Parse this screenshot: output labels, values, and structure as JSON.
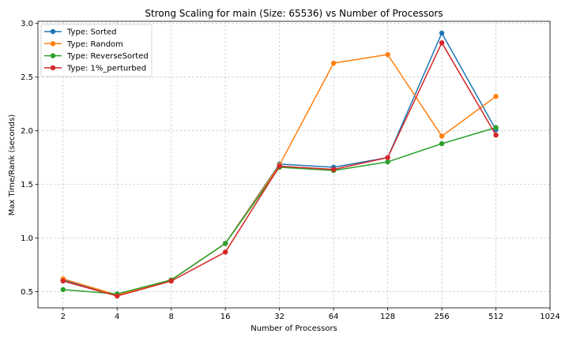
{
  "chart_data": {
    "type": "line",
    "title": "Strong Scaling for main (Size: 65536) vs Number of Processors",
    "xlabel": "Number of Processors",
    "ylabel": "Max Time/Rank (seconds)",
    "x_scale": "log2",
    "x_ticks": [
      2,
      4,
      8,
      16,
      32,
      64,
      128,
      256,
      512,
      1024
    ],
    "xlim": [
      1.45,
      1024
    ],
    "ylim": [
      0.35,
      3.02
    ],
    "y_ticks": [
      "0.5",
      "1.0",
      "1.5",
      "2.0",
      "2.5",
      "3.0"
    ],
    "grid": true,
    "legend_position": "upper-left",
    "x": [
      2,
      4,
      8,
      16,
      32,
      64,
      128,
      256,
      512
    ],
    "series": [
      {
        "name": "Type: Sorted",
        "color": "#1f77b4",
        "values": [
          0.61,
          0.47,
          0.61,
          0.95,
          1.69,
          1.66,
          1.75,
          2.91,
          2.01
        ]
      },
      {
        "name": "Type: Random",
        "color": "#ff7f0e",
        "values": [
          0.62,
          0.47,
          0.61,
          0.95,
          1.68,
          2.63,
          2.71,
          1.95,
          2.32
        ]
      },
      {
        "name": "Type: ReverseSorted",
        "color": "#2ca02c",
        "values": [
          0.52,
          0.48,
          0.61,
          0.95,
          1.66,
          1.63,
          1.71,
          1.88,
          2.03
        ]
      },
      {
        "name": "Type: 1%_perturbed",
        "color": "#d62728",
        "values": [
          0.6,
          0.46,
          0.6,
          0.87,
          1.67,
          1.64,
          1.75,
          2.82,
          1.96
        ]
      }
    ]
  }
}
